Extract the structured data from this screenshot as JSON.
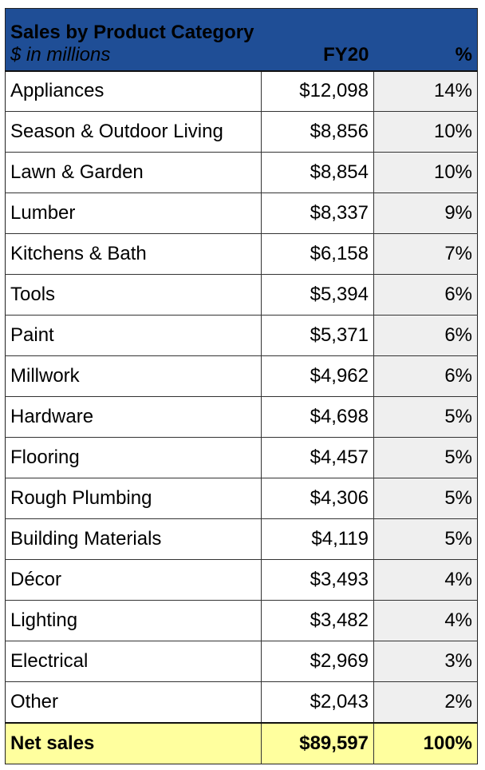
{
  "chart_data": {
    "type": "table",
    "title": "Sales by Product Category",
    "subtitle": "$ in millions",
    "columns": [
      "FY20",
      "%"
    ],
    "rows": [
      {
        "category": "Appliances",
        "value": "$12,098",
        "pct": "14%"
      },
      {
        "category": "Season & Outdoor Living",
        "value": "$8,856",
        "pct": "10%"
      },
      {
        "category": "Lawn & Garden",
        "value": "$8,854",
        "pct": "10%"
      },
      {
        "category": "Lumber",
        "value": "$8,337",
        "pct": "9%"
      },
      {
        "category": "Kitchens & Bath",
        "value": "$6,158",
        "pct": "7%"
      },
      {
        "category": "Tools",
        "value": "$5,394",
        "pct": "6%"
      },
      {
        "category": "Paint",
        "value": "$5,371",
        "pct": "6%"
      },
      {
        "category": "Millwork",
        "value": "$4,962",
        "pct": "6%"
      },
      {
        "category": "Hardware",
        "value": "$4,698",
        "pct": "5%"
      },
      {
        "category": "Flooring",
        "value": "$4,457",
        "pct": "5%"
      },
      {
        "category": "Rough Plumbing",
        "value": "$4,306",
        "pct": "5%"
      },
      {
        "category": "Building Materials",
        "value": "$4,119",
        "pct": "5%"
      },
      {
        "category": "Décor",
        "value": "$3,493",
        "pct": "4%"
      },
      {
        "category": "Lighting",
        "value": "$3,482",
        "pct": "4%"
      },
      {
        "category": "Electrical",
        "value": "$2,969",
        "pct": "3%"
      },
      {
        "category": "Other",
        "value": "$2,043",
        "pct": "2%"
      }
    ],
    "total": {
      "category": "Net sales",
      "value": "$89,597",
      "pct": "100%"
    },
    "header_color": "#1f4e96",
    "total_row_color": "#ffff9e",
    "pct_column_color": "#efefef"
  }
}
